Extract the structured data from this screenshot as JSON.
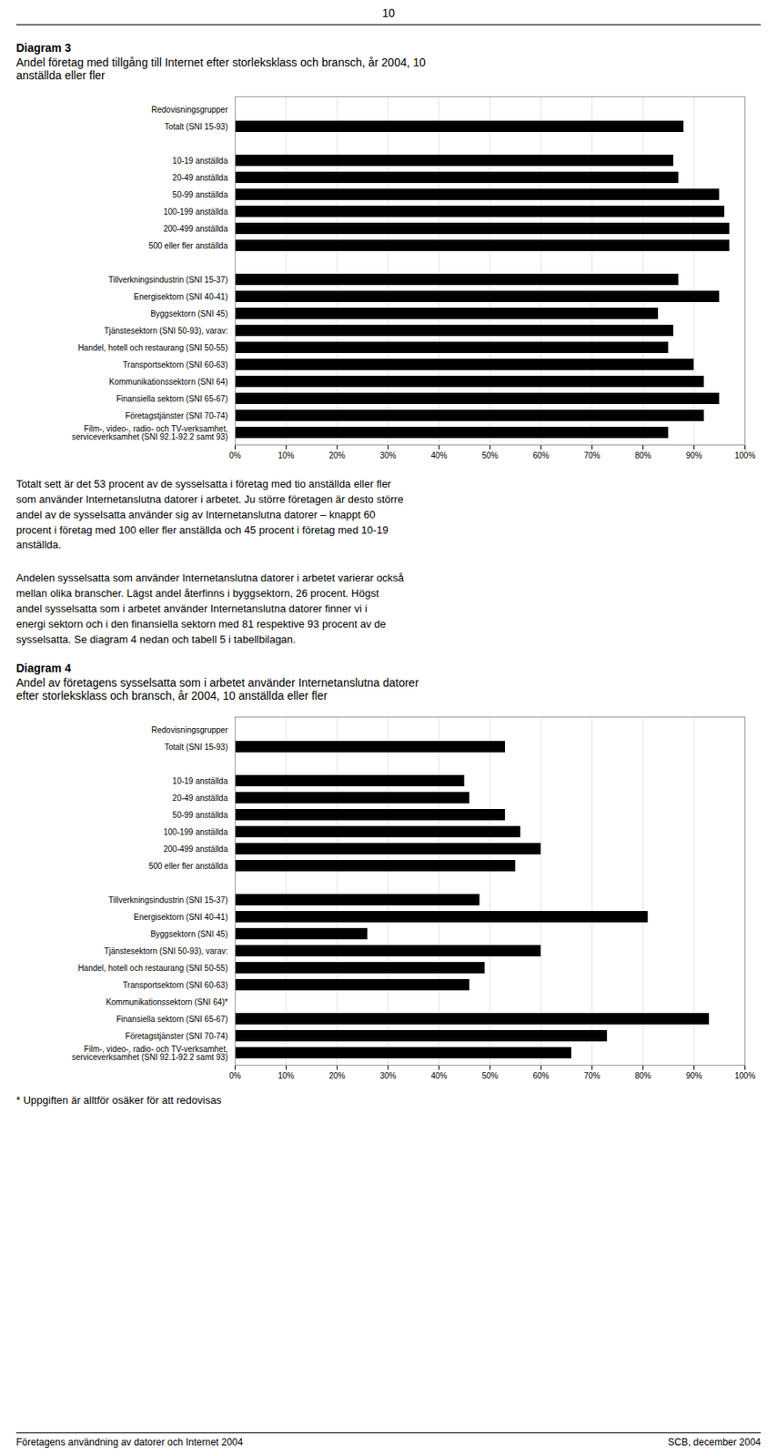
{
  "header": "10",
  "chart_data": [
    {
      "type": "bar",
      "orientation": "horizontal",
      "title": "Diagram 3",
      "subtitle": "Andel företag med tillgång till Internet efter storleksklass och bransch, år 2004, 10\nanställda eller fler",
      "categories": [
        "Redovisningsgrupper",
        "Totalt (SNI 15-93)",
        null,
        "10-19 anställda",
        "20-49 anställda",
        "50-99 anställda",
        "100-199 anställda",
        "200-499 anställda",
        "500 eller fler anställda",
        null,
        "Tillverkningsindustrin (SNI 15-37)",
        "Energisektorn (SNI 40-41)",
        "Byggsektorn (SNI 45)",
        "Tjänstesektorn (SNI 50-93), varav:",
        "Handel, hotell och restaurang (SNI 50-55)",
        "Transportsektorn (SNI 60-63)",
        "Kommunikationssektorn (SNI 64)",
        "Finansiella sektorn (SNI 65-67)",
        "Företagstjänster (SNI 70-74)",
        "Film-, video-, radio- och TV-verksamhet,\nserviceverksamhet (SNI 92.1-92.2 samt 93)"
      ],
      "values": [
        0,
        88,
        0,
        86,
        87,
        95,
        96,
        97,
        97,
        0,
        87,
        95,
        83,
        86,
        85,
        90,
        92,
        95,
        92,
        85
      ],
      "xlim": [
        0,
        100
      ],
      "xticks": [
        {
          "value": 0,
          "label": "0%"
        },
        {
          "value": 10,
          "label": "10%"
        },
        {
          "value": 20,
          "label": "20%"
        },
        {
          "value": 30,
          "label": "30%"
        },
        {
          "value": 40,
          "label": "40%"
        },
        {
          "value": 50,
          "label": "50%"
        },
        {
          "value": 60,
          "label": "60%"
        },
        {
          "value": 70,
          "label": "70%"
        },
        {
          "value": 80,
          "label": "80%"
        },
        {
          "value": 90,
          "label": "90%"
        },
        {
          "value": 100,
          "label": "100%"
        }
      ],
      "grid": true
    },
    {
      "type": "bar",
      "orientation": "horizontal",
      "title": "Diagram 4",
      "subtitle": "Andel av företagens sysselsatta som i arbetet använder Internetanslutna datorer\nefter storleksklass och bransch, år 2004, 10 anställda eller fler",
      "categories": [
        "Redovisningsgrupper",
        "Totalt (SNI 15-93)",
        null,
        "10-19 anställda",
        "20-49 anställda",
        "50-99 anställda",
        "100-199 anställda",
        "200-499 anställda",
        "500 eller fler anställda",
        null,
        "Tillverkningsindustrin (SNI 15-37)",
        "Energisektorn (SNI 40-41)",
        "Byggsektorn (SNI 45)",
        "Tjänstesektorn (SNI 50-93), varav:",
        "Handel, hotell och restaurang (SNI 50-55)",
        "Transportsektorn (SNI 60-63)",
        "Kommunikationssektorn (SNI 64)*",
        "Finansiella sektorn (SNI 65-67)",
        "Företagstjänster (SNI 70-74)",
        "Film-, video-, radio- och TV-verksamhet,\nserviceverksamhet (SNI 92.1-92.2 samt 93)"
      ],
      "values": [
        0,
        53,
        0,
        45,
        46,
        53,
        56,
        60,
        55,
        0,
        48,
        81,
        26,
        60,
        49,
        46,
        0,
        93,
        73,
        66
      ],
      "xlim": [
        0,
        100
      ],
      "xticks": [
        {
          "value": 0,
          "label": "0%"
        },
        {
          "value": 10,
          "label": "10%"
        },
        {
          "value": 20,
          "label": "20%"
        },
        {
          "value": 30,
          "label": "30%"
        },
        {
          "value": 40,
          "label": "40%"
        },
        {
          "value": 50,
          "label": "50%"
        },
        {
          "value": 60,
          "label": "60%"
        },
        {
          "value": 70,
          "label": "70%"
        },
        {
          "value": 80,
          "label": "80%"
        },
        {
          "value": 90,
          "label": "90%"
        },
        {
          "value": 100,
          "label": "100%"
        }
      ],
      "grid": true
    }
  ],
  "paragraphs": [
    "Totalt sett är det 53 procent av de sysselsatta i företag med tio anställda eller fler\nsom använder Internetanslutna datorer i arbetet. Ju större företagen är desto större\nandel av de sysselsatta använder sig av Internetanslutna datorer – knappt 60\nprocent i företag med 100 eller fler anställda och 45 procent i företag med 10-19\nanställda.",
    "Andelen sysselsatta som använder Internetanslutna datorer i arbetet varierar också\nmellan olika branscher. Lägst andel återfinns i byggsektorn, 26 procent. Högst\nandel sysselsatta som i arbetet använder Internetanslutna datorer finner vi i\nenergi sektorn och i den finansiella sektorn med 81 respektive 93 procent av de\nsysselsatta. Se diagram 4 nedan och tabell 5 i tabellbilagan."
  ],
  "footnote": "* Uppgiften är alltför osäker för att redovisas",
  "footer_left": "Företagens användning av datorer och Internet 2004",
  "footer_right": "SCB, december 2004"
}
